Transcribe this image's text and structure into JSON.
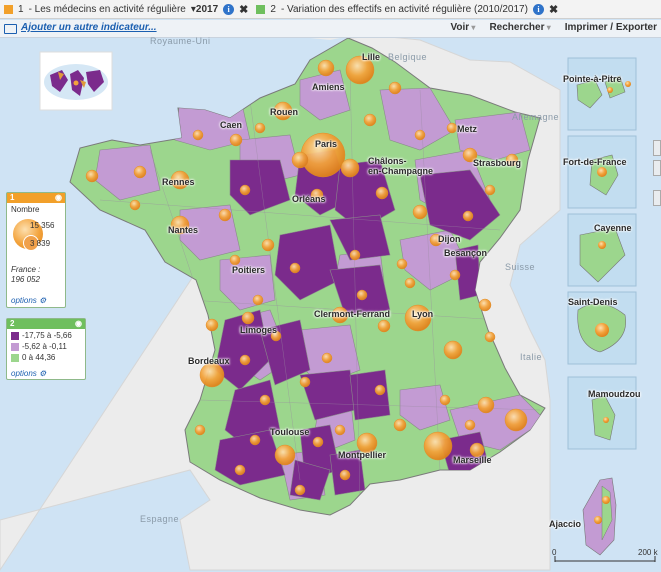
{
  "header": {
    "indicator1_number": "1",
    "indicator1_label": "- Les médecins en activité régulière",
    "year": "2017",
    "indicator2_number": "2",
    "indicator2_label": "- Variation des effectifs en activité régulière (2010/2017)",
    "info_glyph": "i",
    "close_glyph": "✖",
    "colors": {
      "indicator1": "#f2a02a",
      "indicator2": "#6fbf5e"
    }
  },
  "toolbar": {
    "add_indicator": "Ajouter un autre indicateur...",
    "menu": [
      "Voir",
      "Rechercher",
      "Imprimer / Exporter"
    ]
  },
  "legend1": {
    "number": "1",
    "title": "Nombre",
    "max_value": "15 356",
    "mid_value": "3 839",
    "france_label": "France :",
    "france_value": "196 052",
    "options": "options"
  },
  "legend2": {
    "number": "2",
    "classes": [
      {
        "label": "-17,75 à -5,66",
        "color": "#7b2b8c"
      },
      {
        "label": "-5,62 à -0,11",
        "color": "#c39bd3"
      },
      {
        "label": "0 à 44,36",
        "color": "#9cd68d"
      }
    ],
    "options": "options"
  },
  "map_colors": {
    "sea": "#cfe3f4",
    "land_outside": "#ececec",
    "bubble": "#f3a33c"
  },
  "cities": [
    "Lille",
    "Amiens",
    "Rouen",
    "Caen",
    "Paris",
    "Metz",
    "Châlons-\nen-Champagne",
    "Strasbourg",
    "Rennes",
    "Orléans",
    "Nantes",
    "Dijon",
    "Besançon",
    "Poitiers",
    "Clermont-Ferrand",
    "Lyon",
    "Limoges",
    "Bordeaux",
    "Toulouse",
    "Montpellier",
    "Marseille"
  ],
  "foreign": [
    "Belgique",
    "Allemagne",
    "Suisse",
    "Italie",
    "Espagne",
    "Royaume-Uni"
  ],
  "insets": [
    "Pointe-à-Pitre",
    "Fort-de-France",
    "Cayenne",
    "Saint-Denis",
    "Mamoudzou",
    "Ajaccio"
  ],
  "scale": {
    "zero": "0",
    "max": "200 k"
  }
}
